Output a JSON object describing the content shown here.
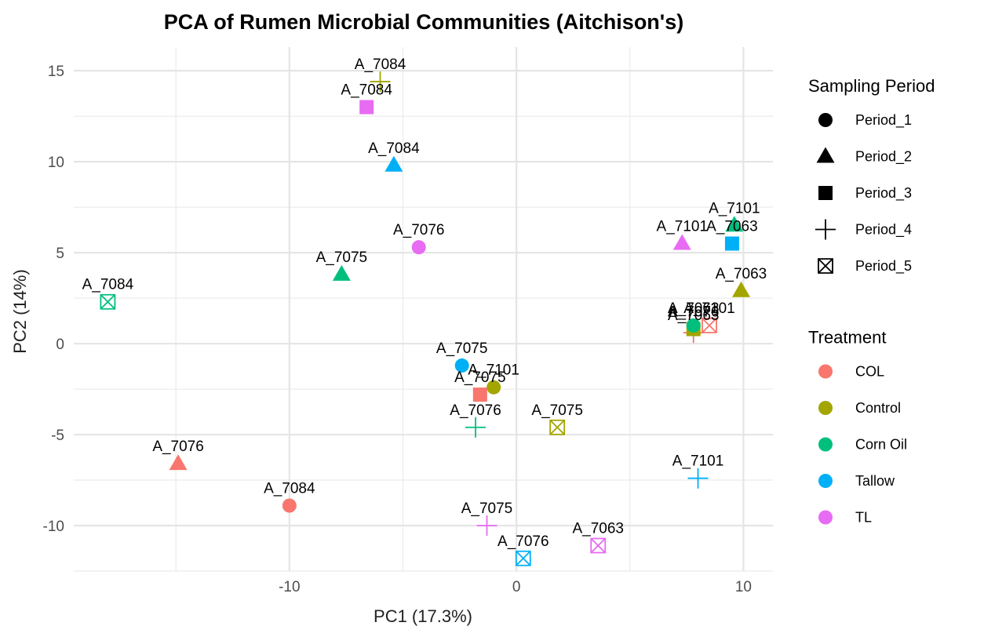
{
  "chart_data": {
    "type": "scatter",
    "title": "PCA of Rumen Microbial Communities (Aitchison's)",
    "xlabel": "PC1 (17.3%)",
    "ylabel": "PC2 (14%)",
    "xlim": [
      -19.5,
      11.3
    ],
    "ylim": [
      -12.5,
      16.3
    ],
    "x_ticks": [
      -10,
      0,
      10
    ],
    "x_tick_labels": [
      "-10",
      "0",
      "10"
    ],
    "y_ticks": [
      -10,
      -5,
      0,
      5,
      10,
      15
    ],
    "y_tick_labels": [
      "-10",
      "-5",
      "0",
      "5",
      "10",
      "15"
    ],
    "grid": true,
    "legend_position": "right",
    "legends": [
      {
        "title": "Sampling Period",
        "type": "shape",
        "items": [
          {
            "label": "Period_1",
            "shape": "circle"
          },
          {
            "label": "Period_2",
            "shape": "triangle"
          },
          {
            "label": "Period_3",
            "shape": "square"
          },
          {
            "label": "Period_4",
            "shape": "plus"
          },
          {
            "label": "Period_5",
            "shape": "boxcross"
          }
        ]
      },
      {
        "title": "Treatment",
        "type": "color",
        "items": [
          {
            "label": "COL",
            "color": "#F8766D"
          },
          {
            "label": "Control",
            "color": "#A3A500"
          },
          {
            "label": "Corn Oil",
            "color": "#00BF7D"
          },
          {
            "label": "Tallow",
            "color": "#00B0F6"
          },
          {
            "label": "TL",
            "color": "#E76BF3"
          }
        ]
      }
    ],
    "points": [
      {
        "label": "A_7084",
        "x": -6.0,
        "y": 14.4,
        "period": "Period_4",
        "treatment": "Control"
      },
      {
        "label": "A_7084",
        "x": -6.6,
        "y": 13.0,
        "period": "Period_3",
        "treatment": "TL"
      },
      {
        "label": "A_7084",
        "x": -5.4,
        "y": 9.8,
        "period": "Period_2",
        "treatment": "Tallow"
      },
      {
        "label": "A_7076",
        "x": -4.3,
        "y": 5.3,
        "period": "Period_1",
        "treatment": "TL"
      },
      {
        "label": "A_7075",
        "x": -7.7,
        "y": 3.8,
        "period": "Period_2",
        "treatment": "Corn Oil"
      },
      {
        "label": "A_7084",
        "x": -18.0,
        "y": 2.3,
        "period": "Period_5",
        "treatment": "Corn Oil"
      },
      {
        "label": "A_7075",
        "x": -2.4,
        "y": -1.2,
        "period": "Period_1",
        "treatment": "Tallow"
      },
      {
        "label": "A_7101",
        "x": -1.0,
        "y": -2.4,
        "period": "Period_1",
        "treatment": "Control"
      },
      {
        "label": "A_7075",
        "x": -1.6,
        "y": -2.8,
        "period": "Period_3",
        "treatment": "COL"
      },
      {
        "label": "A_7076",
        "x": -1.8,
        "y": -4.6,
        "period": "Period_4",
        "treatment": "Corn Oil"
      },
      {
        "label": "A_7075",
        "x": 1.8,
        "y": -4.6,
        "period": "Period_5",
        "treatment": "Control"
      },
      {
        "label": "A_7076",
        "x": -14.9,
        "y": -6.6,
        "period": "Period_2",
        "treatment": "COL"
      },
      {
        "label": "A_7084",
        "x": -10.0,
        "y": -8.9,
        "period": "Period_1",
        "treatment": "COL"
      },
      {
        "label": "A_7075",
        "x": -1.3,
        "y": -10.0,
        "period": "Period_4",
        "treatment": "TL"
      },
      {
        "label": "A_7076",
        "x": 0.3,
        "y": -11.8,
        "period": "Period_5",
        "treatment": "Tallow"
      },
      {
        "label": "A_7063",
        "x": 3.6,
        "y": -11.1,
        "period": "Period_5",
        "treatment": "TL"
      },
      {
        "label": "A_7101",
        "x": 8.0,
        "y": -7.4,
        "period": "Period_4",
        "treatment": "Tallow"
      },
      {
        "label": "A_7101",
        "x": 9.6,
        "y": 6.5,
        "period": "Period_2",
        "treatment": "Corn Oil"
      },
      {
        "label": "A_7101",
        "x": 7.3,
        "y": 5.5,
        "period": "Period_2",
        "treatment": "TL"
      },
      {
        "label": "A_7063",
        "x": 9.5,
        "y": 5.5,
        "period": "Period_3",
        "treatment": "Tallow"
      },
      {
        "label": "A_7063",
        "x": 9.9,
        "y": 2.9,
        "period": "Period_2",
        "treatment": "Control"
      },
      {
        "label": "A_7101",
        "x": 8.5,
        "y": 1.0,
        "period": "Period_5",
        "treatment": "COL"
      },
      {
        "label": "A_7063",
        "x": 7.8,
        "y": 0.6,
        "period": "Period_4",
        "treatment": "COL"
      },
      {
        "label": "A_7076",
        "x": 7.8,
        "y": 0.8,
        "period": "Period_3",
        "treatment": "Control"
      },
      {
        "label": "A_7063",
        "x": 7.8,
        "y": 1.0,
        "period": "Period_1",
        "treatment": "Corn Oil"
      }
    ]
  }
}
